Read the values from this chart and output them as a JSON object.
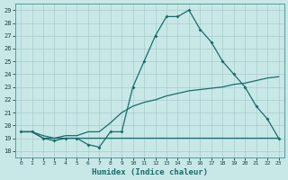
{
  "background_color": "#c8e8e8",
  "grid_color": "#a8cccc",
  "line_color": "#1a6b6b",
  "xlabel": "Humidex (Indice chaleur)",
  "xlim": [
    -0.5,
    23.5
  ],
  "ylim": [
    17.5,
    29.5
  ],
  "xticks": [
    0,
    1,
    2,
    3,
    4,
    5,
    6,
    7,
    8,
    9,
    10,
    11,
    12,
    13,
    14,
    15,
    16,
    17,
    18,
    19,
    20,
    21,
    22,
    23
  ],
  "yticks": [
    18,
    19,
    20,
    21,
    22,
    23,
    24,
    25,
    26,
    27,
    28,
    29
  ],
  "curve_x": [
    0,
    1,
    2,
    3,
    4,
    5,
    6,
    7,
    8,
    9,
    10,
    11,
    12,
    13,
    14,
    15,
    16,
    17,
    18,
    19,
    20,
    21,
    22,
    23
  ],
  "curve_y": [
    19.5,
    19.5,
    19.0,
    18.8,
    19.0,
    19.0,
    18.5,
    18.3,
    19.5,
    19.5,
    23.0,
    25.0,
    27.0,
    28.5,
    28.5,
    29.0,
    27.5,
    26.5,
    25.0,
    24.0,
    23.0,
    21.5,
    20.5,
    19.0
  ],
  "flat_x": [
    0,
    1,
    2,
    3,
    4,
    5,
    6,
    7,
    8,
    9,
    10,
    11,
    12,
    13,
    14,
    15,
    16,
    17,
    18,
    19,
    20,
    21,
    22,
    23
  ],
  "flat_y": [
    19.5,
    19.5,
    19.0,
    19.0,
    19.0,
    19.0,
    19.0,
    19.0,
    19.0,
    19.0,
    19.0,
    19.0,
    19.0,
    19.0,
    19.0,
    19.0,
    19.0,
    19.0,
    19.0,
    19.0,
    19.0,
    19.0,
    19.0,
    19.0
  ],
  "diag_x": [
    0,
    1,
    2,
    3,
    4,
    5,
    6,
    7,
    8,
    9,
    10,
    11,
    12,
    13,
    14,
    15,
    16,
    17,
    18,
    19,
    20,
    21,
    22,
    23
  ],
  "diag_y": [
    19.5,
    19.5,
    19.2,
    19.0,
    19.2,
    19.2,
    19.5,
    19.5,
    20.2,
    21.0,
    21.5,
    21.8,
    22.0,
    22.3,
    22.5,
    22.7,
    22.8,
    22.9,
    23.0,
    23.2,
    23.3,
    23.5,
    23.7,
    23.8
  ]
}
